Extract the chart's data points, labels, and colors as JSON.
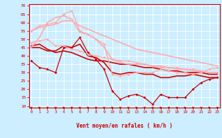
{
  "bg_color": "#cceeff",
  "grid_color": "#aadddd",
  "x_label": "Vent moyen/en rafales ( km/h )",
  "x_ticks": [
    0,
    1,
    2,
    3,
    4,
    5,
    6,
    7,
    8,
    9,
    10,
    11,
    12,
    13,
    14,
    15,
    16,
    17,
    18,
    19,
    20,
    21,
    22,
    23
  ],
  "y_ticks": [
    10,
    15,
    20,
    25,
    30,
    35,
    40,
    45,
    50,
    55,
    60,
    65,
    70
  ],
  "ylim": [
    9,
    71
  ],
  "xlim": [
    -0.3,
    23.3
  ],
  "series": [
    {
      "x": [
        0,
        1,
        2,
        3,
        4,
        5,
        6,
        7,
        8,
        9,
        10,
        11,
        12,
        13,
        14,
        15,
        16,
        17,
        18,
        19,
        20,
        21,
        22,
        23
      ],
      "y": [
        37,
        33,
        32,
        30,
        45,
        45,
        51,
        42,
        38,
        32,
        19,
        14,
        16,
        17,
        15,
        11,
        17,
        15,
        15,
        15,
        20,
        24,
        26,
        27
      ],
      "color": "#cc0000",
      "linewidth": 0.9,
      "marker": "D",
      "markersize": 2.0,
      "alpha": 1.0
    },
    {
      "x": [
        0,
        1,
        2,
        3,
        4,
        5,
        6,
        7,
        8,
        9,
        10,
        11,
        12,
        13,
        14,
        15,
        16,
        17,
        18,
        19,
        20,
        21,
        22,
        23
      ],
      "y": [
        45,
        45,
        43,
        43,
        46,
        45,
        47,
        40,
        39,
        36,
        30,
        29,
        30,
        30,
        29,
        29,
        27,
        27,
        28,
        28,
        29,
        28,
        27,
        27
      ],
      "color": "#cc0000",
      "linewidth": 1.2,
      "marker": null,
      "markersize": 0,
      "alpha": 1.0
    },
    {
      "x": [
        0,
        1,
        2,
        3,
        4,
        5,
        6,
        7,
        8,
        9,
        10,
        11,
        12,
        13,
        14,
        15,
        16,
        17,
        18,
        19,
        20,
        21,
        22,
        23
      ],
      "y": [
        46,
        47,
        44,
        42,
        43,
        42,
        40,
        38,
        37,
        37,
        36,
        35,
        35,
        34,
        33,
        33,
        32,
        31,
        31,
        30,
        30,
        30,
        29,
        29
      ],
      "color": "#cc0000",
      "linewidth": 1.2,
      "marker": null,
      "markersize": 0,
      "alpha": 1.0
    },
    {
      "x": [
        0,
        1,
        2,
        3,
        4,
        5,
        6,
        7,
        8,
        9,
        10,
        11,
        12,
        13,
        14,
        15,
        16,
        17,
        18,
        19,
        20,
        21,
        22,
        23
      ],
      "y": [
        48,
        49,
        50,
        46,
        46,
        44,
        43,
        41,
        40,
        39,
        38,
        37,
        37,
        36,
        35,
        34,
        34,
        33,
        33,
        32,
        32,
        31,
        30,
        30
      ],
      "color": "#ffaaaa",
      "linewidth": 0.9,
      "marker": "D",
      "markersize": 2.0,
      "alpha": 1.0
    },
    {
      "x": [
        0,
        1,
        2,
        3,
        4,
        5,
        6,
        7,
        8,
        9,
        10,
        11,
        12,
        13,
        14,
        15,
        16,
        17,
        18,
        19,
        20,
        21,
        22,
        23
      ],
      "y": [
        55,
        58,
        59,
        60,
        65,
        67,
        55,
        53,
        50,
        47,
        29,
        28,
        29,
        30,
        30,
        30,
        32,
        31,
        30,
        30,
        29,
        30,
        32,
        33
      ],
      "color": "#ffaaaa",
      "linewidth": 0.9,
      "marker": "D",
      "markersize": 2.0,
      "alpha": 1.0
    },
    {
      "x": [
        0,
        1,
        2,
        3,
        4,
        5,
        6,
        7,
        8,
        9,
        10,
        11,
        12,
        13,
        14,
        15,
        16,
        17,
        18,
        19,
        20,
        21,
        22,
        23
      ],
      "y": [
        45,
        51,
        60,
        63,
        64,
        62,
        54,
        53,
        50,
        45,
        38,
        36,
        35,
        35,
        35,
        34,
        33,
        33,
        32,
        32,
        31,
        31,
        30,
        30
      ],
      "color": "#ffaaaa",
      "linewidth": 1.2,
      "marker": null,
      "markersize": 0,
      "alpha": 1.0
    },
    {
      "x": [
        0,
        1,
        2,
        3,
        4,
        5,
        6,
        7,
        8,
        9,
        10,
        11,
        12,
        13,
        14,
        15,
        16,
        17,
        18,
        19,
        20,
        21,
        22,
        23
      ],
      "y": [
        55,
        57,
        58,
        59,
        61,
        61,
        58,
        56,
        54,
        52,
        50,
        48,
        46,
        44,
        43,
        42,
        41,
        40,
        39,
        38,
        37,
        36,
        35,
        34
      ],
      "color": "#ffaaaa",
      "linewidth": 1.2,
      "marker": null,
      "markersize": 0,
      "alpha": 1.0
    }
  ],
  "arrow_color": "#cc0000",
  "tick_color": "#cc0000",
  "axis_color": "#cc0000"
}
